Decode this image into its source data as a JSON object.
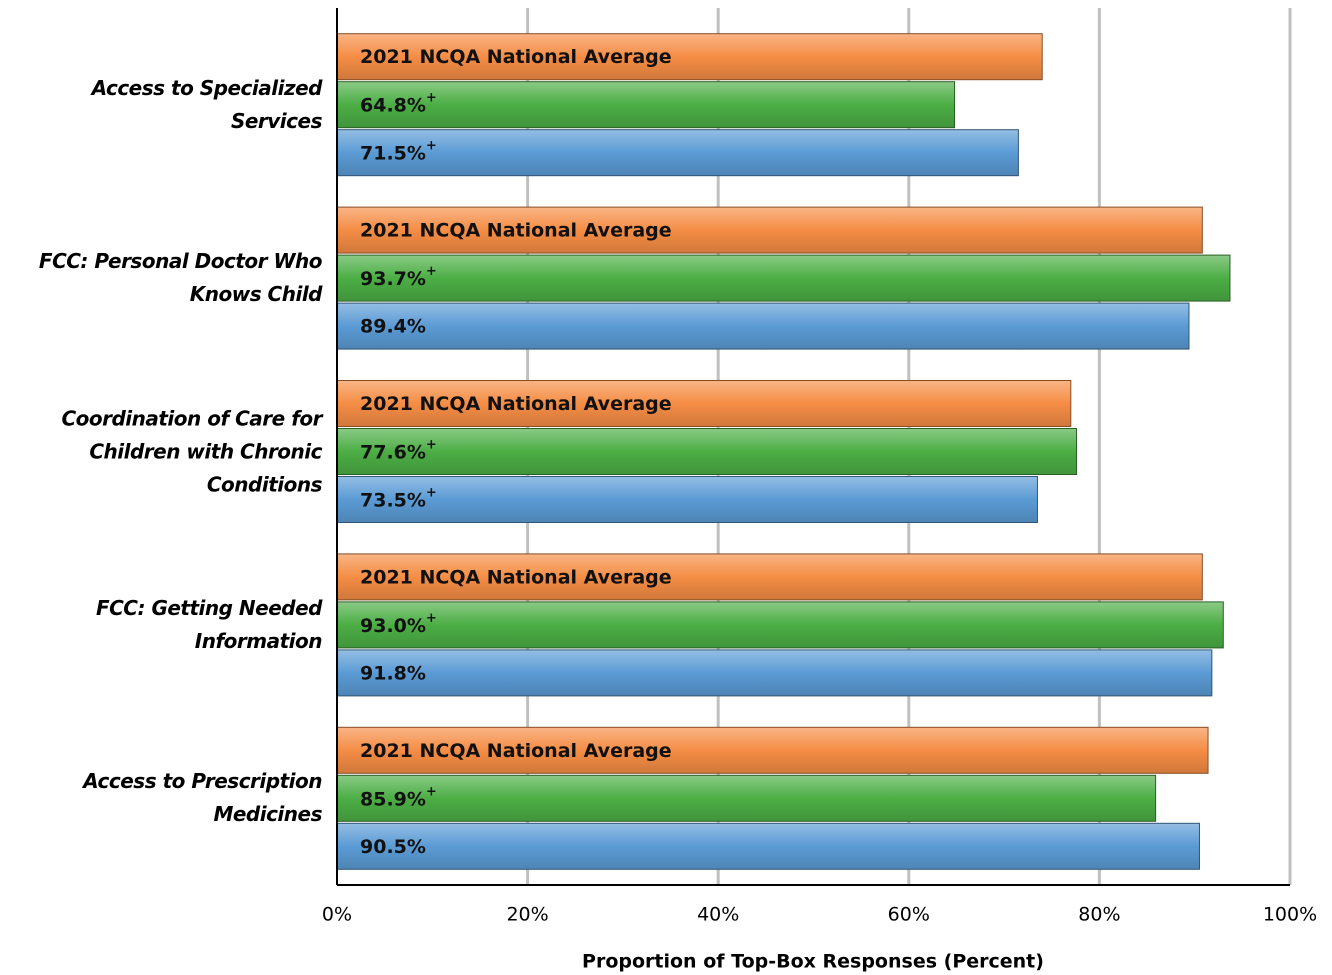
{
  "chart_data": {
    "type": "hbar",
    "categories": [
      "Access to Specialized Services",
      "FCC: Personal Doctor Who Knows Child",
      "Coordination of Care for Children with Chronic Conditions",
      "FCC: Getting Needed Information",
      "Access to Prescription Medicines"
    ],
    "series": [
      {
        "name": "2021 NCQA National Average",
        "color": "#f58d45",
        "values": [
          74.0,
          90.8,
          77.0,
          90.8,
          91.4
        ]
      },
      {
        "color": "#4cae45",
        "values": [
          64.8,
          93.7,
          77.6,
          93.0,
          85.9
        ],
        "value_labels": [
          "64.8%+",
          "93.7%+",
          "77.6%+",
          "93.0%+",
          "85.9%+"
        ]
      },
      {
        "color": "#5b9bd5",
        "values": [
          71.5,
          89.4,
          73.5,
          91.8,
          90.5
        ],
        "value_labels": [
          "71.5%+",
          "89.4%",
          "73.5%+",
          "91.8%",
          "90.5%"
        ]
      }
    ],
    "xlabel": "Proportion of Top-Box Responses (Percent)",
    "xlim": [
      0,
      100
    ],
    "xticks": [
      {
        "value": 0,
        "label": "0%"
      },
      {
        "value": 20,
        "label": "20%"
      },
      {
        "value": 40,
        "label": "40%"
      },
      {
        "value": 60,
        "label": "60%"
      },
      {
        "value": 80,
        "label": "80%"
      },
      {
        "value": 100,
        "label": "100%"
      }
    ],
    "grid": true
  }
}
